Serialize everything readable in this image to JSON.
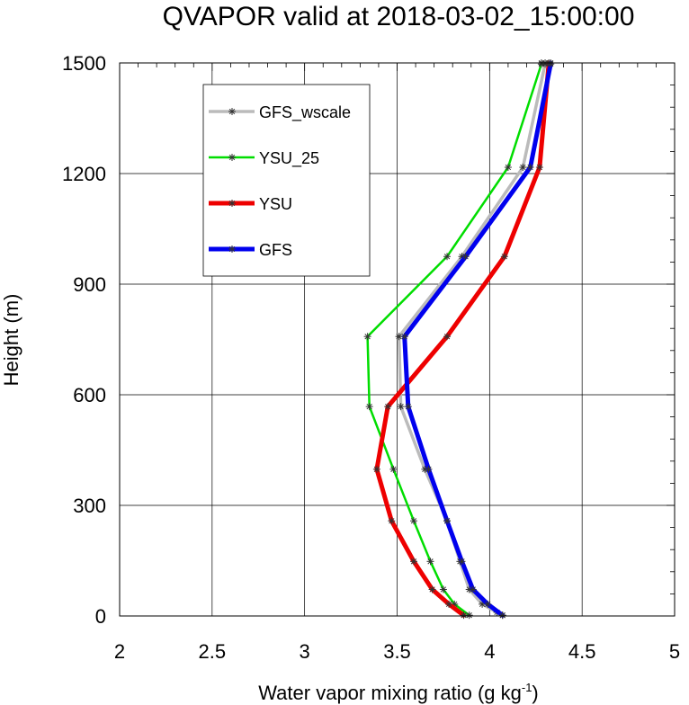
{
  "chart_data": {
    "type": "line",
    "title": "QVAPOR valid at 2018-03-02_15:00:00",
    "xlabel_main": "Water vapor mixing ratio (g kg",
    "xlabel_sup": "-1",
    "xlabel_end": ")",
    "ylabel": "Height (m)",
    "xlim": [
      2,
      5
    ],
    "ylim": [
      0,
      1500
    ],
    "x_ticks": [
      2,
      2.5,
      3,
      3.5,
      4,
      4.5,
      5
    ],
    "x_tick_labels": [
      "2",
      "2.5",
      "3",
      "3.5",
      "4",
      "4.5",
      "5"
    ],
    "y_ticks": [
      0,
      300,
      600,
      900,
      1200,
      1500
    ],
    "y_tick_labels": [
      "0",
      "300",
      "600",
      "900",
      "1200",
      "1500"
    ],
    "legend_position": "top-left",
    "series": [
      {
        "name": "GFS_wscale",
        "color": "#bbbbbb",
        "x": [
          4.07,
          4.04,
          3.96,
          3.89,
          3.84,
          3.77,
          3.65,
          3.52,
          3.51,
          3.85,
          4.18,
          4.3,
          4.3
        ],
        "y": [
          2,
          10,
          32,
          72,
          148,
          258,
          398,
          568,
          758,
          975,
          1217,
          1497,
          1500
        ]
      },
      {
        "name": "YSU_25",
        "color": "#00dd00",
        "x": [
          3.89,
          3.81,
          3.75,
          3.68,
          3.59,
          3.48,
          3.35,
          3.34,
          3.77,
          4.1,
          4.28,
          4.28
        ],
        "y": [
          2,
          32,
          72,
          148,
          258,
          398,
          568,
          758,
          975,
          1217,
          1497,
          1500
        ]
      },
      {
        "name": "YSU",
        "color": "#ee0000",
        "x": [
          3.86,
          3.78,
          3.69,
          3.59,
          3.47,
          3.39,
          3.45,
          3.77,
          4.08,
          4.27,
          4.32,
          4.32
        ],
        "y": [
          2,
          32,
          72,
          148,
          258,
          398,
          568,
          758,
          975,
          1217,
          1497,
          1500
        ]
      },
      {
        "name": "GFS",
        "color": "#0000ee",
        "x": [
          4.07,
          3.99,
          3.91,
          3.85,
          3.77,
          3.67,
          3.56,
          3.54,
          3.87,
          4.22,
          4.33,
          4.33
        ],
        "y": [
          2,
          32,
          72,
          148,
          258,
          398,
          568,
          758,
          975,
          1217,
          1497,
          1500
        ]
      }
    ]
  }
}
